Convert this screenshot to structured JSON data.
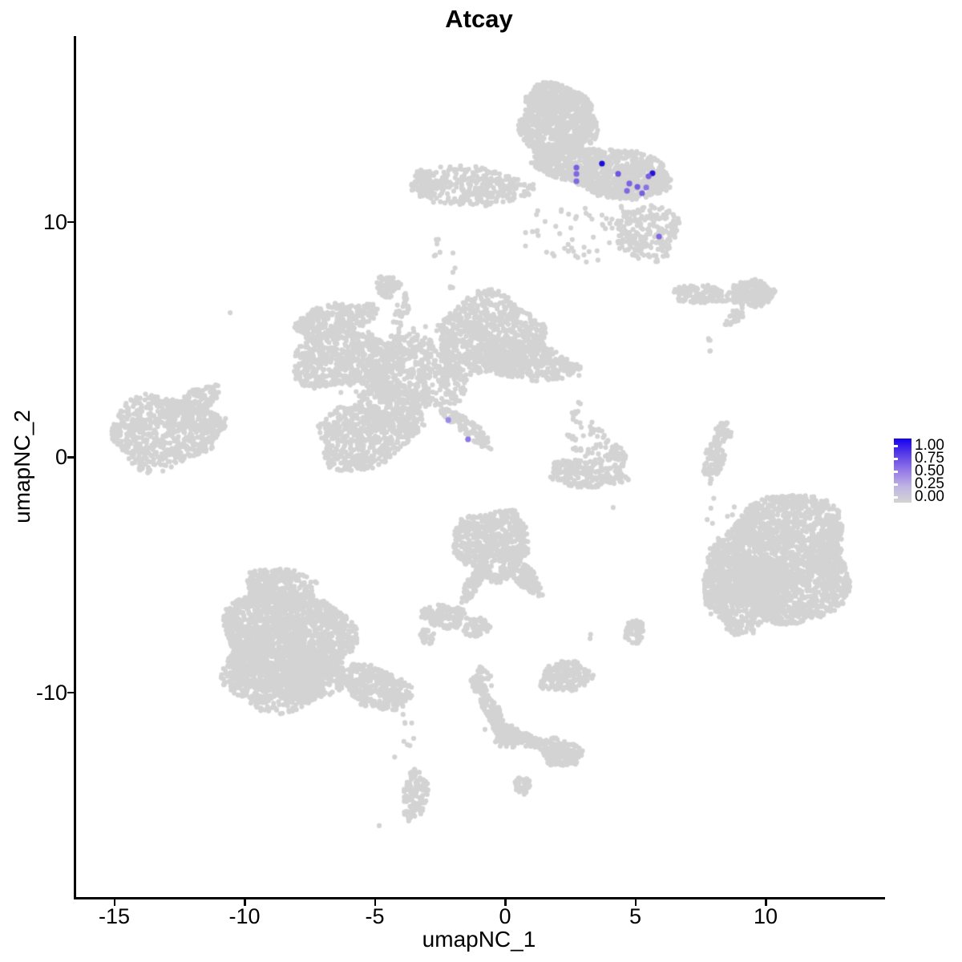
{
  "chart_data": {
    "type": "scatter",
    "title": "Atcay",
    "xlabel": "umapNC_1",
    "ylabel": "umapNC_2",
    "xlim": [
      -16.5,
      14.55
    ],
    "ylim": [
      -18.7,
      17.9
    ],
    "xtick_values": [
      -15,
      -10,
      -5,
      0,
      5,
      10
    ],
    "xtick_labels": [
      "-15",
      "-10",
      "-5",
      "0",
      "5",
      "10"
    ],
    "ytick_values": [
      -10,
      0,
      10
    ],
    "ytick_labels": [
      "-10",
      "0",
      "10"
    ],
    "grid": false,
    "background_color": "#ffffff",
    "base_point_color": "#d3d3d3",
    "low_color": "#d3d3d3",
    "high_color": "#0000ff",
    "legend": {
      "position": "right",
      "tick_labels": [
        "1.00",
        "0.75",
        "0.50",
        "0.25",
        "0.00"
      ],
      "gradient_stops": [
        "#1400f0",
        "#5b3fe8",
        "#9579e8",
        "#bfb5e3",
        "#d3d3d3"
      ]
    },
    "cluster_fields": [
      "name",
      "x",
      "y",
      "rx",
      "ry",
      "rot_deg",
      "n_points"
    ],
    "clusters": [
      [
        "top-head",
        2.0,
        14.31,
        1.48,
        1.53,
        -8,
        850
      ],
      [
        "top-head-tip",
        1.54,
        15.33,
        0.74,
        0.51,
        -20,
        120
      ],
      [
        "top-band",
        3.85,
        12.16,
        2.74,
        0.99,
        10,
        1000
      ],
      [
        "top-left-arm",
        -1.35,
        11.51,
        2.25,
        0.85,
        4,
        330
      ],
      [
        "top-left-arm-tip",
        -3.17,
        11.51,
        0.43,
        0.61,
        0,
        60
      ],
      [
        "top-low-blob",
        5.42,
        9.54,
        1.29,
        1.19,
        0,
        230
      ],
      [
        "top-scatter",
        2.83,
        9.61,
        2.25,
        1.5,
        0,
        55
      ],
      [
        "top-dots-left",
        -2.71,
        8.89,
        0.28,
        0.55,
        0,
        6
      ],
      [
        "mid-arm-left",
        -6.52,
        5.83,
        1.66,
        0.65,
        -13,
        280
      ],
      [
        "mid-lobe-left",
        -6.15,
        4.19,
        2.09,
        1.23,
        -5,
        650
      ],
      [
        "mid-center",
        -3.38,
        3.48,
        1.91,
        1.57,
        0,
        480
      ],
      [
        "mid-tri-blob",
        -4.52,
        7.29,
        0.46,
        0.48,
        0,
        70
      ],
      [
        "mid-strand",
        -4.03,
        6.0,
        0.25,
        0.95,
        18,
        35
      ],
      [
        "mid-lobe-topright",
        -0.55,
        5.15,
        2.03,
        1.74,
        0,
        800
      ],
      [
        "mid-arm-right",
        0.92,
        4.02,
        1.88,
        0.78,
        8,
        380
      ],
      [
        "mid-lobe-bottom",
        -5.48,
        0.85,
        1.78,
        1.4,
        -8,
        580
      ],
      [
        "mid-connector",
        -4.31,
        2.11,
        1.35,
        1.02,
        30,
        240
      ],
      [
        "mid-streak",
        -1.45,
        1.26,
        1.42,
        0.31,
        37,
        110
      ],
      [
        "mid-texture",
        -3.23,
        4.53,
        1.85,
        1.19,
        0,
        70
      ],
      [
        "mid-fringe",
        -4.62,
        3.07,
        2.77,
        2.04,
        0,
        40
      ],
      [
        "mid-top-chain",
        -2.0,
        7.84,
        0.25,
        1.0,
        5,
        6
      ],
      [
        "left-main",
        -13.08,
        1.09,
        2.09,
        1.57,
        -4,
        680
      ],
      [
        "left-arm-up",
        -11.78,
        2.39,
        0.92,
        0.48,
        -32,
        110
      ],
      [
        "left-point",
        -11.17,
        1.33,
        0.62,
        0.31,
        -12,
        55
      ],
      [
        "rmid-string",
        7.57,
        6.92,
        1.17,
        0.41,
        3,
        130
      ],
      [
        "rmid-blob",
        9.48,
        6.95,
        0.83,
        0.61,
        0,
        200
      ],
      [
        "rmid-diag",
        8.8,
        5.96,
        0.48,
        0.25,
        -38,
        38
      ],
      [
        "rmid-dots",
        7.75,
        4.77,
        0.31,
        0.31,
        0,
        5
      ],
      [
        "rmid-crescent-top",
        8.37,
        1.02,
        0.32,
        0.46,
        0,
        45
      ],
      [
        "rmid-crescent-band",
        8.03,
        -0.03,
        0.37,
        0.85,
        12,
        85
      ],
      [
        "rmid-crescent-tail",
        7.97,
        -1.02,
        0.15,
        0.27,
        0,
        4
      ],
      [
        "cmid-chain",
        2.77,
        2.11,
        0.25,
        0.58,
        15,
        8
      ],
      [
        "cmid-loose",
        3.17,
        0.55,
        0.89,
        1.06,
        0,
        55
      ],
      [
        "cmid-crescent",
        3.11,
        -0.72,
        1.48,
        0.58,
        5,
        200
      ],
      [
        "cmid-hook",
        4.28,
        0.0,
        0.37,
        0.55,
        -20,
        55
      ],
      [
        "right-main",
        10.71,
        -4.36,
        2.62,
        2.76,
        0,
        2200
      ],
      [
        "right-left-lobe",
        9.17,
        -5.72,
        1.54,
        1.7,
        0,
        600
      ],
      [
        "right-appendage",
        8.03,
        -5.66,
        0.46,
        0.95,
        0,
        70
      ],
      [
        "right-trail",
        8.4,
        -2.9,
        0.74,
        1.53,
        0,
        11
      ],
      [
        "botleft-main",
        -8.37,
        -7.84,
        2.46,
        2.21,
        0,
        1900
      ],
      [
        "botleft-bottom",
        -8.55,
        -9.37,
        2.4,
        1.36,
        0,
        700
      ],
      [
        "botleft-peak",
        -8.68,
        -5.55,
        1.32,
        0.85,
        0,
        300
      ],
      [
        "botleft-tail",
        -4.98,
        -9.78,
        1.48,
        0.85,
        22,
        380
      ],
      [
        "botleft-chain",
        -3.91,
        -12.06,
        0.4,
        1.16,
        10,
        9
      ],
      [
        "botleft-foot",
        -3.45,
        -14.38,
        0.46,
        1.09,
        6,
        120
      ],
      [
        "botcenter-main",
        -0.49,
        -3.68,
        1.48,
        1.47,
        0,
        650
      ],
      [
        "botcenter-arm",
        0.77,
        -5.11,
        0.86,
        0.41,
        50,
        160
      ],
      [
        "botcenter-tail",
        -1.26,
        -5.45,
        0.77,
        0.29,
        -62,
        85
      ],
      [
        "botcenter-west",
        -2.37,
        -6.78,
        0.83,
        0.51,
        5,
        150
      ],
      [
        "botcenter-west-foot",
        -2.98,
        -7.63,
        0.25,
        0.41,
        0,
        25
      ],
      [
        "botcenter-south",
        -1.08,
        -7.26,
        0.52,
        0.41,
        0,
        70
      ],
      [
        "botcenter-dots",
        -1.63,
        -6.81,
        0.31,
        0.17,
        0,
        3
      ],
      [
        "snake-top",
        -0.92,
        -9.51,
        0.43,
        0.55,
        0,
        55
      ],
      [
        "snake-diag",
        -0.46,
        -10.9,
        1.0,
        0.31,
        64,
        130
      ],
      [
        "snake-junction",
        0.12,
        -11.89,
        0.52,
        0.48,
        0,
        80
      ],
      [
        "snake-arm",
        0.86,
        -12.06,
        0.62,
        0.27,
        10,
        60
      ],
      [
        "snake-east-blob",
        2.15,
        -12.57,
        0.83,
        0.58,
        15,
        190
      ],
      [
        "snake-south-blob",
        0.65,
        -13.94,
        0.31,
        0.38,
        0,
        35
      ],
      [
        "bmr-blob",
        2.34,
        -9.34,
        0.98,
        0.65,
        -5,
        200
      ],
      [
        "bmr-small",
        4.95,
        -7.43,
        0.4,
        0.51,
        0,
        55
      ],
      [
        "bmr-dots",
        3.42,
        -7.67,
        0.25,
        0.15,
        0,
        2
      ]
    ],
    "single_points": [
      [
        -4.83,
        -15.67
      ],
      [
        -0.77,
        -11.58
      ],
      [
        -10.55,
        6.13
      ],
      [
        4.15,
        -2.15
      ]
    ],
    "expression_points": [
      {
        "x": 2.74,
        "y": 12.3,
        "value": 0.5,
        "color": "#7a5fe0"
      },
      {
        "x": 2.74,
        "y": 12.03,
        "value": 0.5,
        "color": "#8168e2"
      },
      {
        "x": 2.74,
        "y": 11.72,
        "value": 0.45,
        "color": "#8168e2"
      },
      {
        "x": 3.72,
        "y": 12.47,
        "value": 1.0,
        "color": "#1c0cd8"
      },
      {
        "x": 4.34,
        "y": 12.03,
        "value": 0.6,
        "color": "#6f55de"
      },
      {
        "x": 5.66,
        "y": 12.06,
        "value": 0.95,
        "color": "#2413d6"
      },
      {
        "x": 5.51,
        "y": 11.93,
        "value": 0.55,
        "color": "#7a5fe0"
      },
      {
        "x": 4.77,
        "y": 11.62,
        "value": 0.5,
        "color": "#7d62e1"
      },
      {
        "x": 4.68,
        "y": 11.31,
        "value": 0.5,
        "color": "#8168e2"
      },
      {
        "x": 5.08,
        "y": 11.48,
        "value": 0.55,
        "color": "#755ae0"
      },
      {
        "x": 5.26,
        "y": 11.21,
        "value": 0.5,
        "color": "#7a5fe0"
      },
      {
        "x": 5.42,
        "y": 11.45,
        "value": 0.4,
        "color": "#8a74e4"
      },
      {
        "x": 5.91,
        "y": 9.37,
        "value": 0.5,
        "color": "#8165e2"
      },
      {
        "x": -2.18,
        "y": 1.57,
        "value": 0.3,
        "color": "#9c8ae8"
      },
      {
        "x": -1.42,
        "y": 0.75,
        "value": 0.4,
        "color": "#8d77e5"
      }
    ]
  }
}
